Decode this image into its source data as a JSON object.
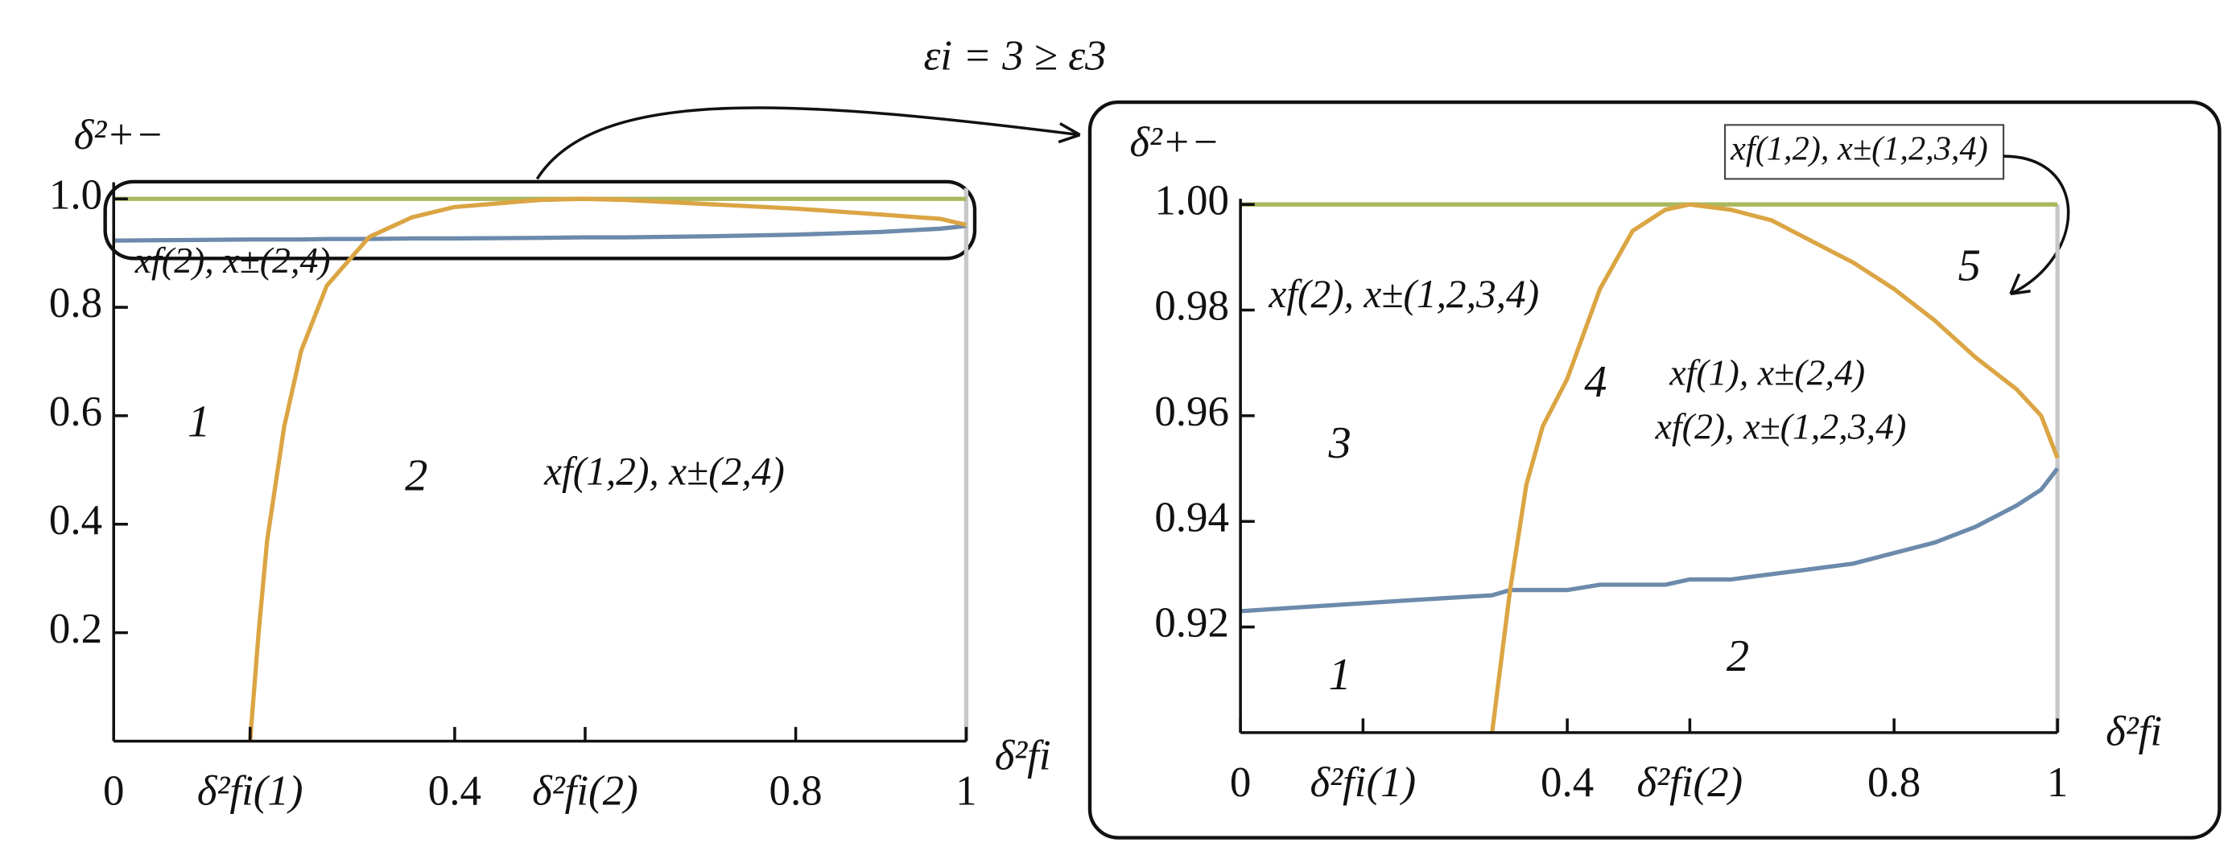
{
  "caption": "εi = 3 ≥ ε3",
  "chart_data": [
    {
      "type": "line",
      "ylabel": "δ²+−",
      "xlabel": "δ²fi",
      "x": [
        0,
        0.16,
        0.17,
        0.18,
        0.2,
        0.22,
        0.25,
        0.3,
        0.35,
        0.4,
        0.5,
        0.55,
        0.6,
        0.7,
        0.8,
        0.9,
        0.97,
        1
      ],
      "series": [
        {
          "color": "#a9b85c",
          "values": [
            1,
            1,
            1,
            1,
            1,
            1,
            1,
            1,
            1,
            1,
            1,
            1,
            1,
            1,
            1,
            1,
            1,
            1
          ]
        },
        {
          "color": "#6c8aab",
          "values": [
            0.923,
            0.925,
            0.925,
            0.925,
            0.925,
            0.925,
            0.926,
            0.926,
            0.927,
            0.927,
            0.928,
            0.929,
            0.929,
            0.931,
            0.934,
            0.939,
            0.945,
            0.95
          ]
        },
        {
          "color": "#dba544",
          "values": [
            null,
            0,
            0.2,
            0.37,
            0.58,
            0.72,
            0.84,
            0.93,
            0.966,
            0.985,
            0.998,
            1,
            0.998,
            0.99,
            0.982,
            0.971,
            0.963,
            0.952
          ]
        }
      ],
      "xlim": [
        0,
        1
      ],
      "ylim": [
        0,
        1.02
      ],
      "xticks": [
        0,
        {
          "value": 0.16,
          "label": "δ²fi(1)"
        },
        0.4,
        {
          "value": 0.553,
          "label": "δ²fi(2)"
        },
        0.8,
        1
      ],
      "yticks": [
        0.2,
        0.4,
        0.6,
        0.8,
        {
          "value": 1,
          "label": "1.0"
        }
      ],
      "annotations": [
        "xf(2), x±(2,4)",
        "1",
        "2",
        "xf(1,2), x±(2,4)"
      ]
    },
    {
      "type": "line",
      "ylabel": "δ²+−",
      "xlabel": "δ²fi",
      "x": [
        0,
        0.1,
        0.2,
        0.308,
        0.33,
        0.35,
        0.37,
        0.4,
        0.44,
        0.48,
        0.52,
        0.55,
        0.6,
        0.65,
        0.7,
        0.75,
        0.8,
        0.85,
        0.9,
        0.95,
        0.98,
        1
      ],
      "series": [
        {
          "color": "#a9b85c",
          "values": [
            1,
            1,
            1,
            1,
            1,
            1,
            1,
            1,
            1,
            1,
            1,
            1,
            1,
            1,
            1,
            1,
            1,
            1,
            1,
            1,
            1,
            1
          ]
        },
        {
          "color": "#6c8aab",
          "values": [
            0.923,
            0.924,
            0.925,
            0.926,
            0.927,
            0.927,
            0.927,
            0.927,
            0.928,
            0.928,
            0.928,
            0.929,
            0.929,
            0.93,
            0.931,
            0.932,
            0.934,
            0.936,
            0.939,
            0.943,
            0.946,
            0.95
          ]
        },
        {
          "color": "#dba544",
          "values": [
            null,
            null,
            null,
            0.9,
            0.927,
            0.947,
            0.958,
            0.967,
            0.984,
            0.995,
            0.999,
            1,
            0.999,
            0.997,
            0.993,
            0.989,
            0.984,
            0.978,
            0.971,
            0.965,
            0.96,
            0.952
          ]
        }
      ],
      "xlim": [
        0,
        1
      ],
      "ylim": [
        0.9,
        1
      ],
      "xticks": [
        0,
        {
          "value": 0.15,
          "label": "δ²fi(1)"
        },
        0.4,
        {
          "value": 0.55,
          "label": "δ²fi(2)"
        },
        0.8,
        1
      ],
      "yticks": [
        0.92,
        0.94,
        0.96,
        0.98,
        {
          "value": 1,
          "label": "1.00"
        }
      ],
      "annotations": [
        "xf(2), x±(1,2,3,4)",
        "3",
        "4",
        "xf(1), x±(2,4)",
        "xf(2), x±(1,2,3,4)",
        "5",
        "xf(1,2), x±(1,2,3,4)",
        "1",
        "2"
      ]
    }
  ]
}
